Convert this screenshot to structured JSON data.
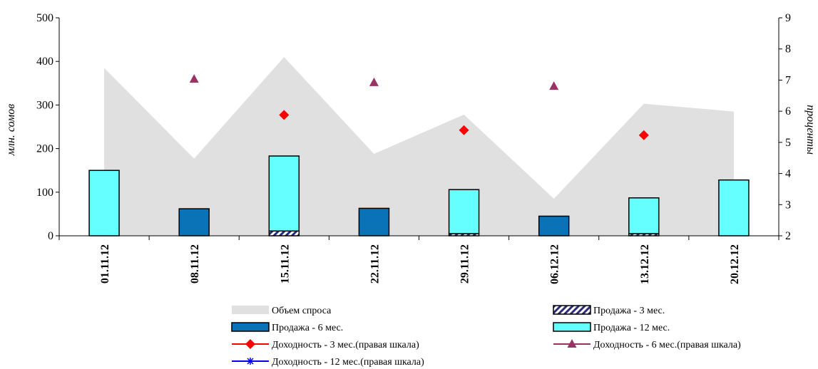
{
  "chart_data": {
    "type": "bar",
    "categories": [
      "01.11.12",
      "08.11.12",
      "15.11.12",
      "22.11.12",
      "29.11.12",
      "06.12.12",
      "13.12.12",
      "20.12.12"
    ],
    "ylabel": "млн. сомов",
    "y2label": "проценты",
    "ylim": [
      0,
      500
    ],
    "y2lim": [
      2,
      9
    ],
    "yticks": [
      0,
      100,
      200,
      300,
      400,
      500
    ],
    "y2ticks": [
      2,
      3,
      4,
      5,
      6,
      7,
      8,
      9
    ],
    "series": [
      {
        "name": "Объем спроса",
        "kind": "area",
        "axis": "left",
        "color": "#e0e0e0",
        "values": [
          385,
          177,
          410,
          188,
          278,
          85,
          303,
          285
        ]
      },
      {
        "name": "Продажа - 3 мес.",
        "kind": "bar-stacked",
        "axis": "left",
        "pattern": "hatch",
        "values": [
          0,
          0,
          11,
          0,
          5,
          0,
          5,
          0
        ]
      },
      {
        "name": "Продажа - 6 мес.",
        "kind": "bar-stacked",
        "axis": "left",
        "color": "#0a73b8",
        "values": [
          0,
          62,
          0,
          63,
          0,
          45,
          0,
          0
        ]
      },
      {
        "name": "Продажа - 12 мес.",
        "kind": "bar-stacked",
        "axis": "left",
        "color": "#66ffff",
        "values": [
          150,
          0,
          172,
          0,
          101,
          0,
          82,
          128
        ]
      },
      {
        "name": "Доходность - 3 мес.(правая шкала)",
        "kind": "marker",
        "axis": "right",
        "color": "#ff0000",
        "marker": "diamond",
        "values": [
          null,
          null,
          5.88,
          null,
          5.39,
          null,
          5.23,
          null
        ]
      },
      {
        "name": "Доходность - 6 мес.(правая шкала)",
        "kind": "marker",
        "axis": "right",
        "color": "#993366",
        "marker": "triangle",
        "values": [
          null,
          7.03,
          null,
          6.92,
          null,
          6.8,
          null,
          null
        ]
      },
      {
        "name": "Доходность - 12 мес.(правая шкала)",
        "kind": "marker",
        "axis": "right",
        "color": "#0000ff",
        "marker": "star",
        "values": [
          null,
          null,
          null,
          null,
          null,
          null,
          null,
          null
        ]
      }
    ]
  }
}
